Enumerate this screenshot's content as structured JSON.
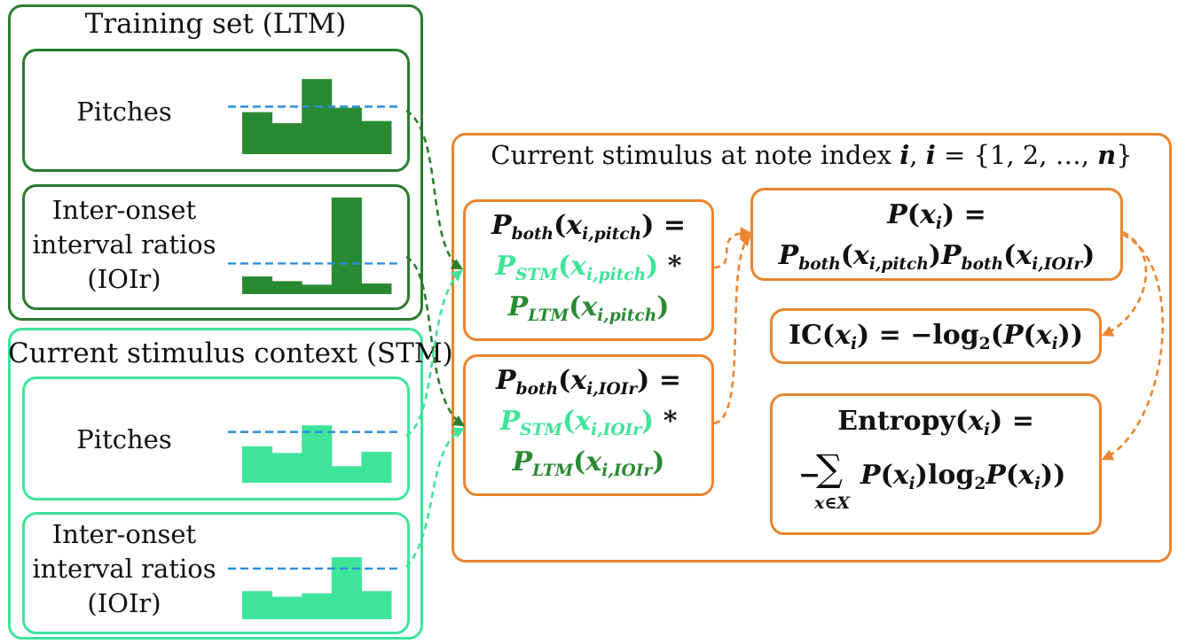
{
  "ltm": {
    "title": "Training set (LTM)",
    "pitches_label": "Pitches",
    "ioi_label_lines": [
      "Inter-onset",
      "interval ratios",
      "(IOIr)"
    ],
    "pitch_hist": [
      0.38,
      0.28,
      0.68,
      0.42,
      0.3
    ],
    "pitch_line": 0.43,
    "ioi_hist": [
      0.15,
      0.11,
      0.08,
      0.82,
      0.09
    ],
    "ioi_line": 0.26
  },
  "stm": {
    "title": "Current stimulus context (STM)",
    "pitches_label": "Pitches",
    "ioi_label_lines": [
      "Inter-onset",
      "interval ratios",
      "(IOIr)"
    ],
    "pitch_hist": [
      0.33,
      0.27,
      0.52,
      0.15,
      0.28
    ],
    "pitch_line": 0.46,
    "ioi_hist": [
      0.25,
      0.2,
      0.23,
      0.55,
      0.25
    ],
    "ioi_line": 0.45
  },
  "current": {
    "title_prefix": "Current stimulus at note index ",
    "title_i": "i",
    "title_mid": ", ",
    "title_i2": "i",
    "title_eq": " = {1, 2, …, ",
    "title_n": "n",
    "title_end": "}"
  },
  "formulas": {
    "pitch": {
      "line1": {
        "P": "P",
        "sub": "both",
        "open": "(",
        "x": "x",
        "xsub": "i,pitch",
        "close": ") ="
      },
      "line2": {
        "P": "P",
        "sub": "STM",
        "open": "(",
        "x": "x",
        "xsub": "i,pitch",
        "close": ")",
        "op": " *"
      },
      "line3": {
        "P": "P",
        "sub": "LTM",
        "open": "(",
        "x": "x",
        "xsub": "i,pitch",
        "close": ")"
      }
    },
    "ioi": {
      "line1": {
        "P": "P",
        "sub": "both",
        "open": "(",
        "x": "x",
        "xsub": "i,IOIr",
        "close": ") ="
      },
      "line2": {
        "P": "P",
        "sub": "STM",
        "open": "(",
        "x": "x",
        "xsub": "i,IOIr",
        "close": ")",
        "op": " *"
      },
      "line3": {
        "P": "P",
        "sub": "LTM",
        "open": "(",
        "x": "x",
        "xsub": "i,IOIr",
        "close": ")"
      }
    },
    "joint": {
      "line1_P": "P",
      "line1_open": "(",
      "line1_x": "x",
      "line1_xsub": "i",
      "line1_close": ") =",
      "a_P": "P",
      "a_sub": "both",
      "a_open": "(",
      "a_x": "x",
      "a_xsub": "i,pitch",
      "a_close": ")",
      "b_P": "P",
      "b_sub": "both",
      "b_open": "(",
      "b_x": "x",
      "b_xsub": "i,IOIr",
      "b_close": ")"
    },
    "ic": {
      "name": "IC",
      "open": "(",
      "x": "x",
      "xsub": "i",
      "mid": ") = −log",
      "base": "2",
      "open2": "(",
      "P": "P",
      "open3": "(",
      "x2": "x",
      "xsub2": "i",
      "close": "))"
    },
    "entropy": {
      "name": "Entropy",
      "open": "(",
      "x": "x",
      "xsub": "i",
      "close": ") =",
      "minus": "−",
      "sigma": "∑",
      "sum_sub": "x∈X",
      "P1": "P",
      "o1": "(",
      "x1": "x",
      "s1": "i",
      "c1": ")",
      "log": "log",
      "base": "2",
      "P2": "P",
      "o2": "(",
      "x2": "x",
      "s2": "i",
      "c2": "))"
    }
  },
  "colors": {
    "ltm": "#2a8a33",
    "stm": "#3fe49b",
    "current": "#e9852f",
    "guide_line": "#2b8fd8"
  }
}
